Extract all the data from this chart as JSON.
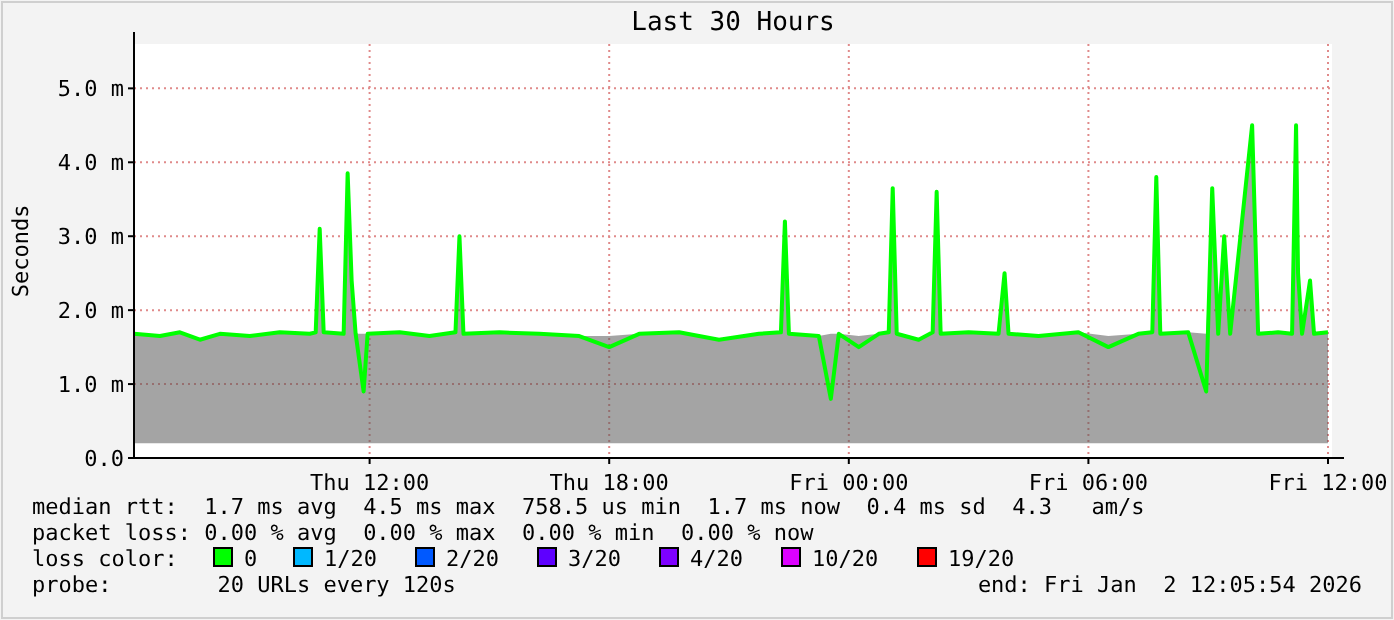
{
  "chart_data": {
    "type": "line",
    "title": "Last 30 Hours",
    "ylabel": "Seconds",
    "legend_title": "loss color:",
    "legend": "bottom",
    "grid": true,
    "marker": "none",
    "line_style": "solid",
    "xlim": [
      "2026-01-01T06:06",
      "2026-01-02T12:06"
    ],
    "xticks": [
      {
        "value": "2026-01-01T12:00",
        "label": "Thu 12:00"
      },
      {
        "value": "2026-01-01T18:00",
        "label": "Thu 18:00"
      },
      {
        "value": "2026-01-02T00:00",
        "label": "Fri 00:00"
      },
      {
        "value": "2026-01-02T06:00",
        "label": "Fri 06:00"
      },
      {
        "value": "2026-01-02T12:00",
        "label": "Fri 12:00"
      }
    ],
    "ylim": [
      0,
      5.6
    ],
    "yticks": [
      {
        "value": 0,
        "label": "0.0"
      },
      {
        "value": 1,
        "label": "1.0 m"
      },
      {
        "value": 2,
        "label": "2.0 m"
      },
      {
        "value": 3,
        "label": "3.0 m"
      },
      {
        "value": 4,
        "label": "4.0 m"
      },
      {
        "value": 5,
        "label": "5.0 m"
      }
    ],
    "x": [
      "2026-01-01T06:06",
      "2026-01-01T06:45",
      "2026-01-01T07:15",
      "2026-01-01T07:45",
      "2026-01-01T08:15",
      "2026-01-01T09:00",
      "2026-01-01T09:45",
      "2026-01-01T10:30",
      "2026-01-01T10:39",
      "2026-01-01T10:45",
      "2026-01-01T10:51",
      "2026-01-01T11:21",
      "2026-01-01T11:27",
      "2026-01-01T11:33",
      "2026-01-01T11:39",
      "2026-01-01T11:51",
      "2026-01-01T11:57",
      "2026-01-01T12:45",
      "2026-01-01T13:30",
      "2026-01-01T14:09",
      "2026-01-01T14:15",
      "2026-01-01T14:21",
      "2026-01-01T15:15",
      "2026-01-01T16:15",
      "2026-01-01T17:15",
      "2026-01-01T18:00",
      "2026-01-01T18:45",
      "2026-01-01T19:45",
      "2026-01-01T20:45",
      "2026-01-01T21:45",
      "2026-01-01T22:18",
      "2026-01-01T22:24",
      "2026-01-01T22:30",
      "2026-01-01T23:15",
      "2026-01-01T23:33",
      "2026-01-01T23:45",
      "2026-01-02T00:15",
      "2026-01-02T00:45",
      "2026-01-02T01:00",
      "2026-01-02T01:06",
      "2026-01-02T01:12",
      "2026-01-02T01:45",
      "2026-01-02T02:06",
      "2026-01-02T02:12",
      "2026-01-02T02:18",
      "2026-01-02T03:00",
      "2026-01-02T03:45",
      "2026-01-02T03:54",
      "2026-01-02T04:00",
      "2026-01-02T04:45",
      "2026-01-02T05:45",
      "2026-01-02T06:30",
      "2026-01-02T07:15",
      "2026-01-02T07:36",
      "2026-01-02T07:42",
      "2026-01-02T07:48",
      "2026-01-02T08:30",
      "2026-01-02T08:57",
      "2026-01-02T09:06",
      "2026-01-02T09:15",
      "2026-01-02T09:24",
      "2026-01-02T09:33",
      "2026-01-02T10:06",
      "2026-01-02T10:15",
      "2026-01-02T10:45",
      "2026-01-02T11:06",
      "2026-01-02T11:12",
      "2026-01-02T11:15",
      "2026-01-02T11:21",
      "2026-01-02T11:33",
      "2026-01-02T11:39",
      "2026-01-02T12:00"
    ],
    "series": [
      {
        "name": "0",
        "color": "#00ff00",
        "values": [
          1.68,
          1.65,
          1.7,
          1.6,
          1.68,
          1.65,
          1.7,
          1.68,
          1.7,
          3.1,
          1.7,
          1.68,
          3.85,
          2.4,
          1.68,
          0.9,
          1.68,
          1.7,
          1.65,
          1.7,
          3.0,
          1.68,
          1.7,
          1.68,
          1.65,
          1.5,
          1.68,
          1.7,
          1.6,
          1.68,
          1.7,
          3.2,
          1.68,
          1.65,
          0.8,
          1.68,
          1.5,
          1.68,
          1.7,
          3.65,
          1.68,
          1.6,
          1.7,
          3.6,
          1.68,
          1.7,
          1.68,
          2.5,
          1.68,
          1.65,
          1.7,
          1.5,
          1.68,
          1.7,
          3.8,
          1.68,
          1.7,
          0.9,
          3.65,
          1.68,
          3.0,
          1.68,
          4.5,
          1.68,
          1.7,
          1.68,
          4.5,
          2.5,
          1.68,
          2.4,
          1.68,
          1.7
        ],
        "lower": [
          0.2,
          0.2,
          0.2,
          0.2,
          0.2,
          0.2,
          0.2,
          0.2,
          0.2,
          0.2,
          0.2,
          0.2,
          0.2,
          0.2,
          0.2,
          0.2,
          0.2,
          0.2,
          0.2,
          0.2,
          0.2,
          0.2,
          0.2,
          0.2,
          0.2,
          0.2,
          0.2,
          0.2,
          0.2,
          0.2,
          0.2,
          0.2,
          0.2,
          0.2,
          0.2,
          0.2,
          0.2,
          0.2,
          0.2,
          0.2,
          0.2,
          0.2,
          0.2,
          0.2,
          0.2,
          0.2,
          0.2,
          0.2,
          0.2,
          0.2,
          0.2,
          0.2,
          0.2,
          0.2,
          0.2,
          0.2,
          0.2,
          0.2,
          0.2,
          0.2,
          0.2,
          0.2,
          0.2,
          0.2,
          0.2,
          0.2,
          0.2,
          0.2,
          0.2,
          0.2,
          0.2,
          0.2
        ],
        "upper": [
          1.68,
          1.65,
          1.7,
          1.6,
          1.68,
          1.65,
          1.7,
          1.68,
          1.7,
          3.1,
          1.7,
          1.68,
          3.85,
          2.4,
          1.68,
          1.68,
          1.68,
          1.7,
          1.65,
          1.7,
          3.0,
          1.68,
          1.7,
          1.68,
          1.65,
          1.65,
          1.68,
          1.7,
          1.6,
          1.68,
          1.7,
          3.2,
          1.68,
          1.65,
          1.68,
          1.68,
          1.65,
          1.68,
          1.7,
          3.65,
          1.68,
          1.6,
          1.7,
          3.6,
          1.68,
          1.7,
          1.68,
          2.5,
          1.68,
          1.65,
          1.7,
          1.65,
          1.68,
          1.7,
          3.8,
          1.68,
          1.7,
          1.68,
          3.65,
          1.68,
          3.0,
          1.68,
          4.5,
          1.68,
          1.7,
          1.68,
          4.5,
          2.5,
          1.68,
          2.4,
          1.68,
          1.7
        ]
      },
      {
        "name": "1/20",
        "color": "#00b8ff",
        "values": [
          null,
          null,
          null,
          null,
          null,
          null,
          null,
          null,
          null,
          null,
          null,
          null,
          null,
          null,
          null,
          null,
          null,
          null,
          null,
          null,
          null,
          null,
          null,
          null,
          null,
          null,
          null,
          null,
          null,
          null,
          null,
          null,
          null,
          null,
          null,
          null,
          null,
          null,
          null,
          null,
          null,
          null,
          null,
          null,
          null,
          null,
          null,
          null,
          null,
          null,
          null,
          null,
          null,
          null,
          null,
          null,
          null,
          null,
          null,
          null,
          null,
          null,
          null,
          null,
          null,
          null,
          null,
          null,
          null,
          null,
          null,
          null
        ]
      },
      {
        "name": "2/20",
        "color": "#0059ff",
        "values": [
          null,
          null,
          null,
          null,
          null,
          null,
          null,
          null,
          null,
          null,
          null,
          null,
          null,
          null,
          null,
          null,
          null,
          null,
          null,
          null,
          null,
          null,
          null,
          null,
          null,
          null,
          null,
          null,
          null,
          null,
          null,
          null,
          null,
          null,
          null,
          null,
          null,
          null,
          null,
          null,
          null,
          null,
          null,
          null,
          null,
          null,
          null,
          null,
          null,
          null,
          null,
          null,
          null,
          null,
          null,
          null,
          null,
          null,
          null,
          null,
          null,
          null,
          null,
          null,
          null,
          null,
          null,
          null,
          null,
          null,
          null,
          null
        ]
      },
      {
        "name": "3/20",
        "color": "#5e00ff",
        "values": [
          null,
          null,
          null,
          null,
          null,
          null,
          null,
          null,
          null,
          null,
          null,
          null,
          null,
          null,
          null,
          null,
          null,
          null,
          null,
          null,
          null,
          null,
          null,
          null,
          null,
          null,
          null,
          null,
          null,
          null,
          null,
          null,
          null,
          null,
          null,
          null,
          null,
          null,
          null,
          null,
          null,
          null,
          null,
          null,
          null,
          null,
          null,
          null,
          null,
          null,
          null,
          null,
          null,
          null,
          null,
          null,
          null,
          null,
          null,
          null,
          null,
          null,
          null,
          null,
          null,
          null,
          null,
          null,
          null,
          null,
          null,
          null
        ]
      },
      {
        "name": "4/20",
        "color": "#7e00ff",
        "values": [
          null,
          null,
          null,
          null,
          null,
          null,
          null,
          null,
          null,
          null,
          null,
          null,
          null,
          null,
          null,
          null,
          null,
          null,
          null,
          null,
          null,
          null,
          null,
          null,
          null,
          null,
          null,
          null,
          null,
          null,
          null,
          null,
          null,
          null,
          null,
          null,
          null,
          null,
          null,
          null,
          null,
          null,
          null,
          null,
          null,
          null,
          null,
          null,
          null,
          null,
          null,
          null,
          null,
          null,
          null,
          null,
          null,
          null,
          null,
          null,
          null,
          null,
          null,
          null,
          null,
          null,
          null,
          null,
          null,
          null,
          null,
          null
        ]
      },
      {
        "name": "10/20",
        "color": "#dd00ff",
        "values": [
          null,
          null,
          null,
          null,
          null,
          null,
          null,
          null,
          null,
          null,
          null,
          null,
          null,
          null,
          null,
          null,
          null,
          null,
          null,
          null,
          null,
          null,
          null,
          null,
          null,
          null,
          null,
          null,
          null,
          null,
          null,
          null,
          null,
          null,
          null,
          null,
          null,
          null,
          null,
          null,
          null,
          null,
          null,
          null,
          null,
          null,
          null,
          null,
          null,
          null,
          null,
          null,
          null,
          null,
          null,
          null,
          null,
          null,
          null,
          null,
          null,
          null,
          null,
          null,
          null,
          null,
          null,
          null,
          null,
          null,
          null,
          null
        ]
      },
      {
        "name": "19/20",
        "color": "#ff0000",
        "values": [
          null,
          null,
          null,
          null,
          null,
          null,
          null,
          null,
          null,
          null,
          null,
          null,
          null,
          null,
          null,
          null,
          null,
          null,
          null,
          null,
          null,
          null,
          null,
          null,
          null,
          null,
          null,
          null,
          null,
          null,
          null,
          null,
          null,
          null,
          null,
          null,
          null,
          null,
          null,
          null,
          null,
          null,
          null,
          null,
          null,
          null,
          null,
          null,
          null,
          null,
          null,
          null,
          null,
          null,
          null,
          null,
          null,
          null,
          null,
          null,
          null,
          null,
          null,
          null,
          null,
          null,
          null,
          null,
          null,
          null,
          null,
          null
        ]
      }
    ],
    "annotations": [
      "median rtt:  1.7 ms avg  4.5 ms max  758.5 us min  1.7 ms now  0.4 ms sd  4.3   am/s",
      "packet loss: 0.00 % avg  0.00 % max  0.00 % min  0.00 % now",
      "probe:        20 URLs every 120s",
      "end: Fri Jan  2 12:05:54 2026"
    ]
  }
}
